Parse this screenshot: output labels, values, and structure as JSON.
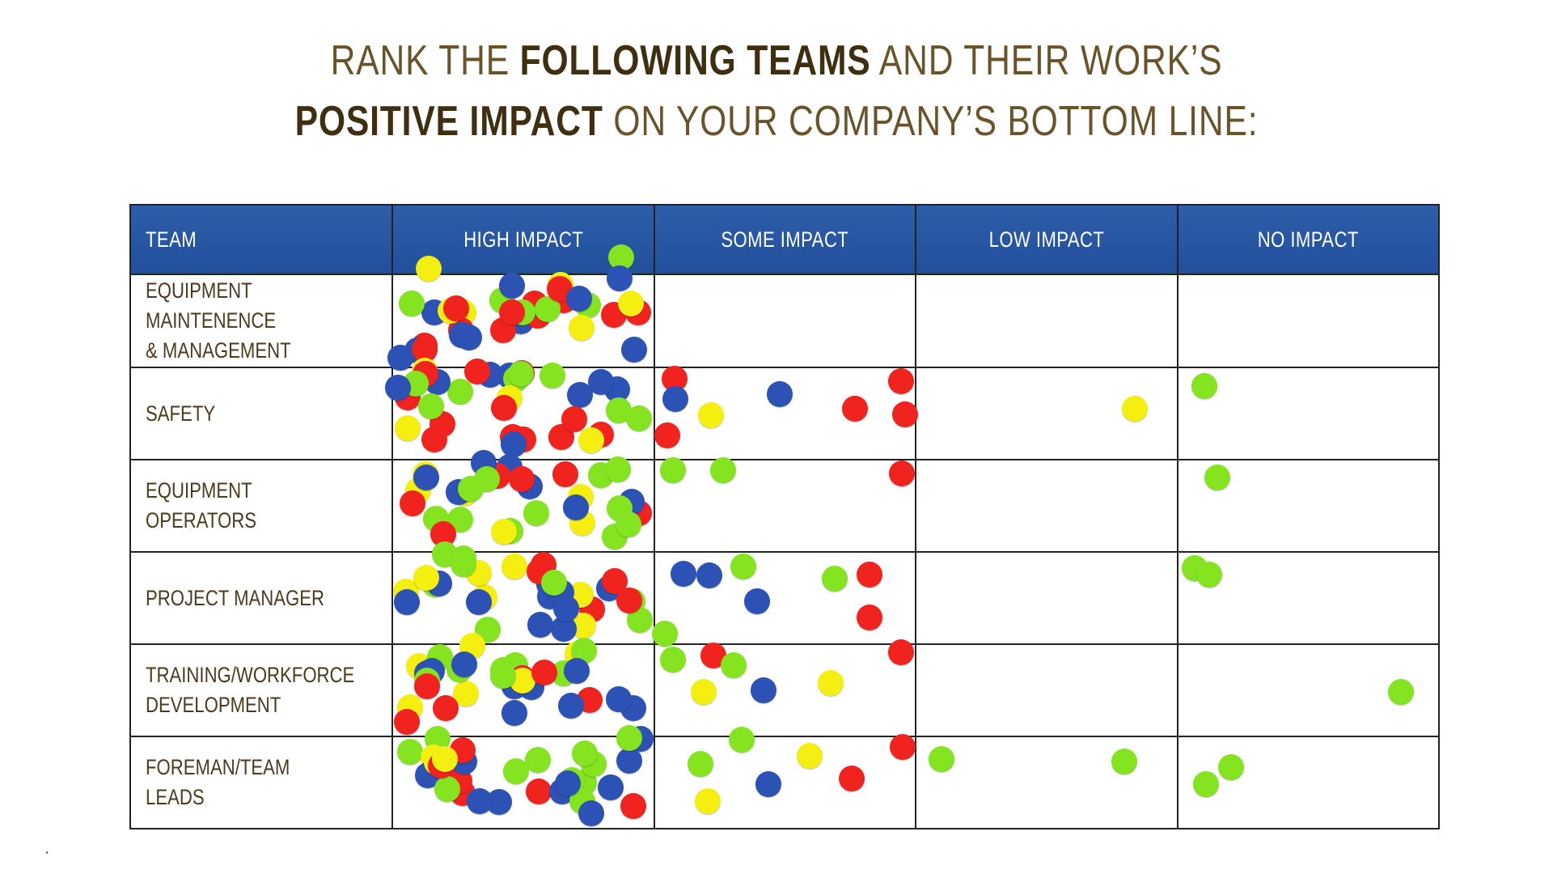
{
  "title": {
    "line1_pre": "RANK THE ",
    "line1_bold": "FOLLOWING TEAMS",
    "line1_post": " AND THEIR WORK’S",
    "line2_bold": "POSITIVE IMPACT",
    "line2_post": " ON YOUR COMPANY’S BOTTOM LINE:"
  },
  "colors": {
    "title": "#6b5329",
    "title_bold": "#3f2f10",
    "header_bg": "#2552a0",
    "dot_blue": "#2c52b5",
    "dot_red": "#f1231f",
    "dot_green": "#84e41f",
    "dot_yellow": "#f4ef10"
  },
  "columns": [
    "TEAM",
    "HIGH IMPACT",
    "SOME IMPACT",
    "LOW IMPACT",
    "NO IMPACT"
  ],
  "rows": [
    "EQUIPMENT MAINTENENCE\n& MANAGEMENT",
    "SAFETY",
    "EQUIPMENT OPERATORS",
    "PROJECT MANAGER",
    "TRAINING/WORKFORCE\nDEVELOPMENT",
    "FOREMAN/TEAM LEADS"
  ]
}
